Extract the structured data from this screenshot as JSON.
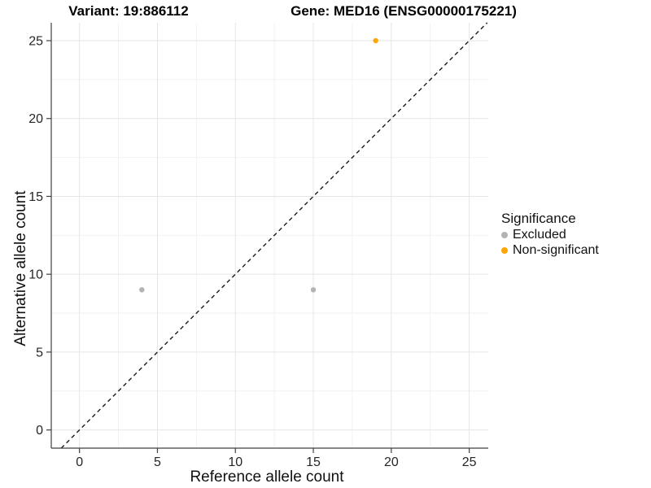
{
  "chart_data": {
    "type": "scatter",
    "title_variant": "Variant: 19:886112",
    "title_gene": "Gene: MED16 (ENSG00000175221)",
    "xlabel": "Reference allele count",
    "ylabel": "Alternative allele count",
    "x_ticks": [
      0,
      5,
      10,
      15,
      20,
      25
    ],
    "y_ticks": [
      0,
      5,
      10,
      15,
      20,
      25
    ],
    "x_minor_ticks": [
      2.5,
      7.5,
      12.5,
      17.5,
      22.5
    ],
    "y_minor_ticks": [
      2.5,
      7.5,
      12.5,
      17.5,
      22.5
    ],
    "xlim": [
      -1.81,
      26.22
    ],
    "ylim": [
      -1.17,
      26.15
    ],
    "grid": true,
    "identity_line": {
      "slope": 1,
      "intercept": 0,
      "style": "dashed",
      "color": "#1a1a1a"
    },
    "series": [
      {
        "name": "Excluded",
        "color": "#b3b3b3",
        "points": [
          [
            4,
            9
          ],
          [
            15,
            9
          ]
        ]
      },
      {
        "name": "Non-significant",
        "color": "#ffa500",
        "points": [
          [
            19,
            25
          ]
        ]
      }
    ],
    "legend": {
      "title": "Significance",
      "position": "right"
    },
    "colors": {
      "grid_major": "#e6e6e6",
      "grid_minor": "#f2f2f2",
      "axis_line": "#404040",
      "tick_label": "#262626"
    }
  }
}
